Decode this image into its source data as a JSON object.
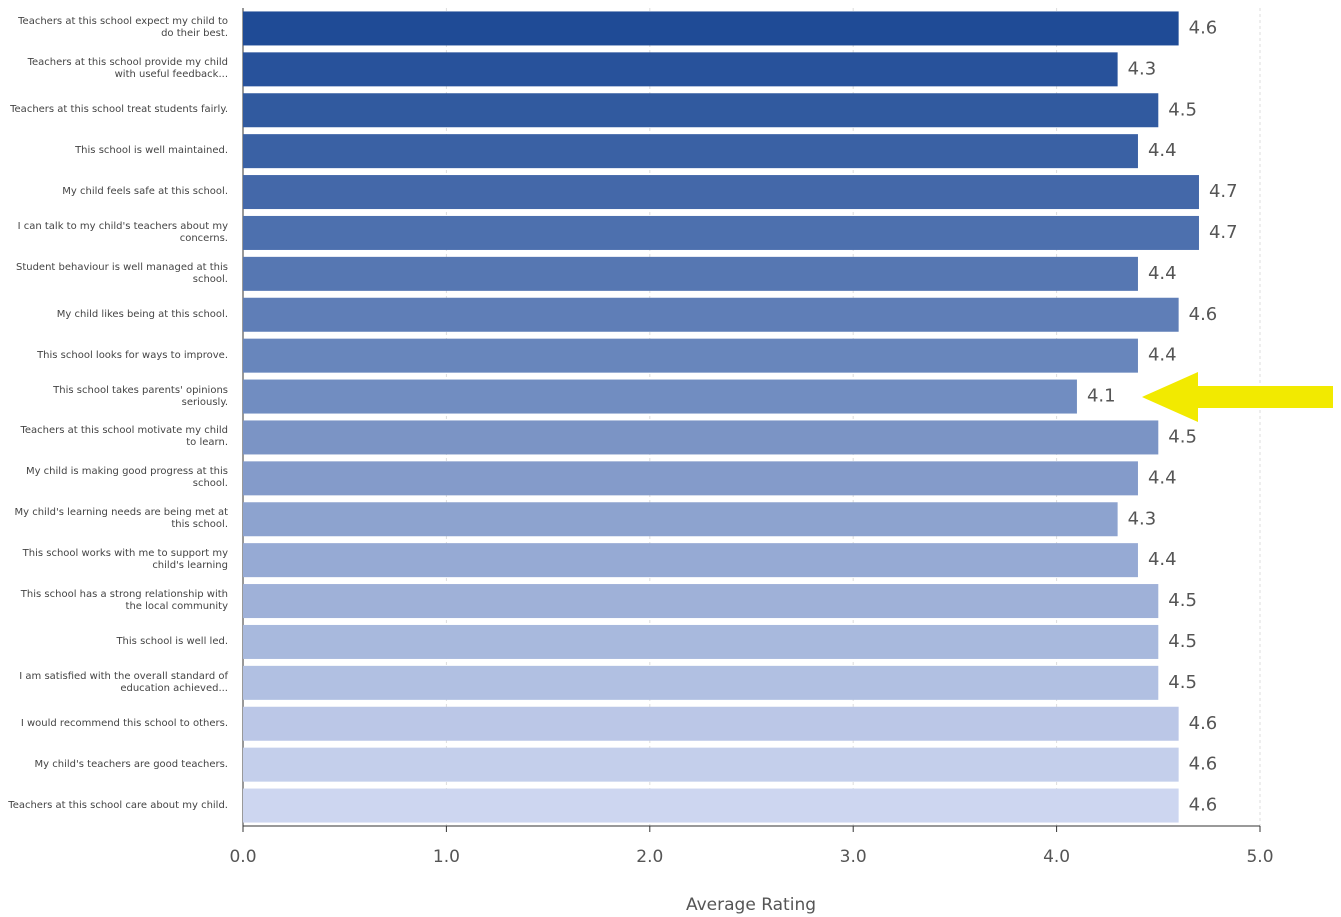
{
  "chart_data": {
    "type": "barh",
    "x_label": "Average Rating",
    "categories": [
      "Teachers at this school expect my child to do their best.",
      "Teachers at this school provide my child with useful feedback...",
      "Teachers at this school treat students fairly.",
      "This school is well maintained.",
      "My child feels safe at this school.",
      "I can talk to my child's teachers about my concerns.",
      "Student behaviour is well managed at this school.",
      "My child likes being at this school.",
      "This school looks for ways to improve.",
      "This school takes parents' opinions seriously.",
      "Teachers at this school motivate my child to learn.",
      "My child is making good progress at this school.",
      "My child's learning needs are being met at this school.",
      "This school works with me to support my child's learning",
      "This school has a strong relationship with the local community",
      "This school is well led.",
      "I am satisfied with the overall standard of education achieved...",
      "I would recommend this school to others.",
      "My child's teachers are good teachers.",
      "Teachers at this school care about my child."
    ],
    "values": [
      4.6,
      4.3,
      4.5,
      4.4,
      4.7,
      4.7,
      4.4,
      4.6,
      4.4,
      4.1,
      4.5,
      4.4,
      4.3,
      4.4,
      4.5,
      4.5,
      4.5,
      4.6,
      4.6,
      4.6
    ],
    "colors": [
      "#1f4b96",
      "#28529b",
      "#315a9f",
      "#3a61a4",
      "#4468a9",
      "#4d70ae",
      "#5677b2",
      "#5f7eb7",
      "#6886bc",
      "#718dc1",
      "#7b94c5",
      "#849bca",
      "#8da3cf",
      "#96aad4",
      "#9fb1d8",
      "#a8b9dd",
      "#b1c0e2",
      "#bbc7e7",
      "#c4cfeb",
      "#cdd6f0"
    ],
    "xlim": [
      0,
      5
    ],
    "xticks": [
      {
        "value": 0,
        "label": "0.0"
      },
      {
        "value": 1,
        "label": "1.0"
      },
      {
        "value": 2,
        "label": "2.0"
      },
      {
        "value": 3,
        "label": "3.0"
      },
      {
        "value": 4,
        "label": "4.0"
      },
      {
        "value": 5,
        "label": "5.0"
      }
    ],
    "grid": true
  }
}
